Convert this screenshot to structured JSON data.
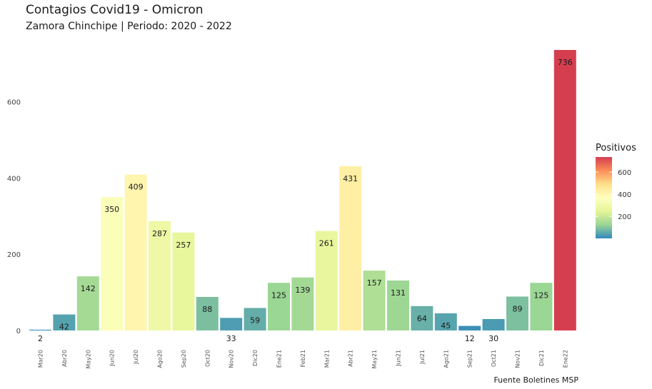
{
  "chart_data": {
    "type": "bar",
    "title": "Contagios Covid19 - Omicron",
    "subtitle": "Zamora Chinchipe | Periodo: 2020 - 2022",
    "caption": "Fuente Boletines MSP",
    "categories": [
      "Mar20",
      "Abr20",
      "May20",
      "Jun20",
      "Jul20",
      "Ago20",
      "Sep20",
      "Oct20",
      "Nov20",
      "Dic20",
      "Ene21",
      "Feb21",
      "Mar21",
      "Abr21",
      "May21",
      "Jun21",
      "Jul21",
      "Ago21",
      "Sep21",
      "Oct21",
      "Nov21",
      "Dic21",
      "Ene22"
    ],
    "values": [
      2,
      42,
      142,
      350,
      409,
      287,
      257,
      88,
      33,
      59,
      125,
      139,
      261,
      431,
      157,
      131,
      64,
      45,
      12,
      30,
      89,
      125,
      736
    ],
    "ylim": [
      0,
      736
    ],
    "yticks": [
      0,
      200,
      400,
      600
    ],
    "legend": {
      "title": "Positivos",
      "placement": "right",
      "ticks": [
        200,
        400,
        600
      ],
      "colors": [
        "#3288bd",
        "#99d594",
        "#e6f598",
        "#ffffbf",
        "#fee08b",
        "#fc8d59",
        "#d53e4f"
      ]
    },
    "grid": false
  }
}
